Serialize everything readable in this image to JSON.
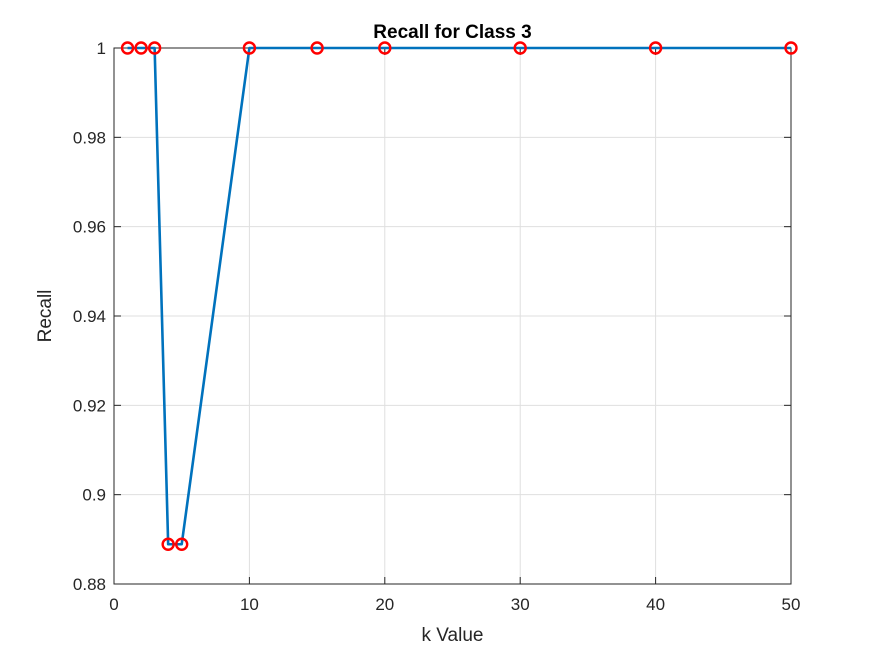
{
  "chart_data": {
    "type": "line",
    "title": "Recall for Class 3",
    "xlabel": "k Value",
    "ylabel": "Recall",
    "xlim": [
      0,
      50
    ],
    "ylim": [
      0.88,
      1.0
    ],
    "xticks": [
      0,
      10,
      20,
      30,
      40,
      50
    ],
    "xtick_labels": [
      "0",
      "10",
      "20",
      "30",
      "40",
      "50"
    ],
    "yticks": [
      0.88,
      0.9,
      0.92,
      0.94,
      0.96,
      0.98,
      1.0
    ],
    "ytick_labels": [
      "0.88",
      "0.9",
      "0.92",
      "0.94",
      "0.96",
      "0.98",
      "1"
    ],
    "grid": true,
    "series": [
      {
        "x": [
          1,
          2,
          3,
          4,
          5,
          10,
          15,
          20,
          30,
          40,
          50
        ],
        "y": [
          1.0,
          1.0,
          1.0,
          0.8889,
          0.8889,
          1.0,
          1.0,
          1.0,
          1.0,
          1.0,
          1.0
        ],
        "line_color": "#0072BD",
        "marker": "circle",
        "marker_color": "#ff0000"
      }
    ]
  }
}
